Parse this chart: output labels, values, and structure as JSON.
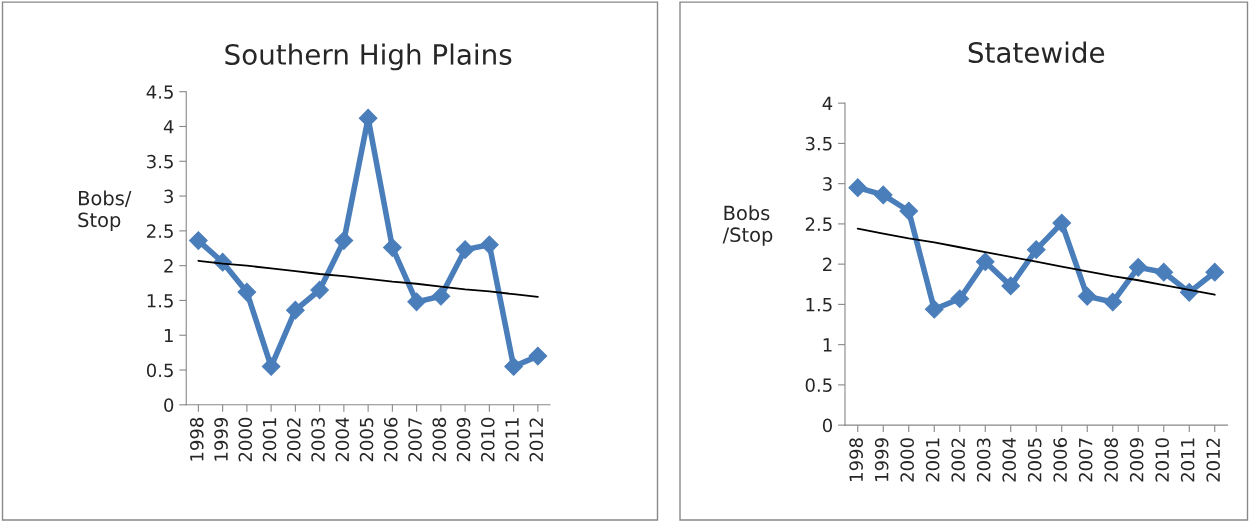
{
  "chart_data": [
    {
      "type": "line",
      "title": "Southern High Plains",
      "ylabel": "Bobs/\nStop",
      "categories": [
        "1998",
        "1999",
        "2000",
        "2001",
        "2002",
        "2003",
        "2004",
        "2005",
        "2006",
        "2007",
        "2008",
        "2009",
        "2010",
        "2011",
        "2012"
      ],
      "series": [
        {
          "color": "#4a7ebb",
          "marker": "diamond",
          "values": [
            2.36,
            2.05,
            1.62,
            0.55,
            1.36,
            1.65,
            2.36,
            4.12,
            2.26,
            1.48,
            1.56,
            2.23,
            2.3,
            0.55,
            0.7
          ]
        },
        {
          "type": "line",
          "color": "#000000",
          "marker": "none",
          "values": [
            2.07,
            2.03,
            2.0,
            1.96,
            1.92,
            1.88,
            1.85,
            1.81,
            1.77,
            1.74,
            1.7,
            1.66,
            1.63,
            1.59,
            1.55
          ]
        }
      ],
      "ylim": [
        0,
        4.5
      ],
      "yticks": [
        0,
        0.5,
        1,
        1.5,
        2,
        2.5,
        3,
        3.5,
        4,
        4.5
      ],
      "grid": false,
      "legend": false
    },
    {
      "type": "line",
      "title": "Statewide",
      "ylabel": "Bobs\n/Stop",
      "categories": [
        "1998",
        "1999",
        "2000",
        "2001",
        "2002",
        "2003",
        "2004",
        "2005",
        "2006",
        "2007",
        "2008",
        "2009",
        "2010",
        "2011",
        "2012"
      ],
      "series": [
        {
          "color": "#4a7ebb",
          "marker": "diamond",
          "values": [
            2.95,
            2.86,
            2.66,
            1.44,
            1.57,
            2.03,
            1.73,
            2.18,
            2.51,
            1.6,
            1.53,
            1.96,
            1.9,
            1.65,
            1.9
          ]
        },
        {
          "type": "line",
          "color": "#000000",
          "marker": "none",
          "values": [
            2.44,
            2.38,
            2.32,
            2.27,
            2.21,
            2.15,
            2.09,
            2.03,
            1.97,
            1.91,
            1.85,
            1.8,
            1.74,
            1.68,
            1.62
          ]
        }
      ],
      "ylim": [
        0,
        4
      ],
      "yticks": [
        0,
        0.5,
        1,
        1.5,
        2,
        2.5,
        3,
        3.5,
        4
      ],
      "grid": false,
      "legend": false
    }
  ]
}
